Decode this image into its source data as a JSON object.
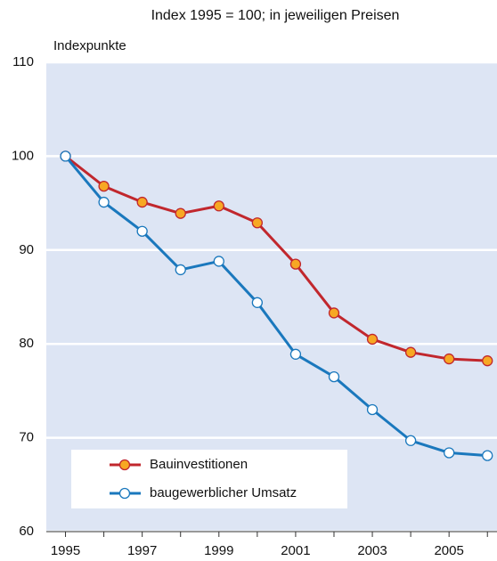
{
  "chart_data": {
    "type": "line",
    "title": "Index 1995 = 100; in jeweiligen Preisen",
    "y_label": "Indexpunkte",
    "x": [
      1995,
      1996,
      1997,
      1998,
      1999,
      2000,
      2001,
      2002,
      2003,
      2004,
      2005,
      2006
    ],
    "series": [
      {
        "name": "Bauinvestitionen",
        "color": "#c1272d",
        "marker_fill": "#f7a823",
        "values": [
          100,
          96.8,
          95.1,
          93.9,
          94.7,
          92.9,
          88.5,
          83.3,
          80.5,
          79.1,
          78.4,
          78.2
        ]
      },
      {
        "name": "baugewerblicher Umsatz",
        "color": "#1a78bd",
        "marker_fill": "#ffffff",
        "values": [
          100,
          95.1,
          92.0,
          87.9,
          88.8,
          84.4,
          78.9,
          76.5,
          73.0,
          69.7,
          68.4,
          68.1
        ]
      }
    ],
    "xlim": [
      1994.5,
      2006.25
    ],
    "xticks": [
      1995,
      1997,
      1999,
      2001,
      2003,
      2005
    ],
    "xminor_ticks": [
      1996,
      1998,
      2000,
      2002,
      2004,
      2006
    ],
    "ylim": [
      60,
      110
    ],
    "yticks": [
      60,
      70,
      80,
      90,
      100,
      110
    ],
    "grid": true,
    "legend": "lower left"
  }
}
